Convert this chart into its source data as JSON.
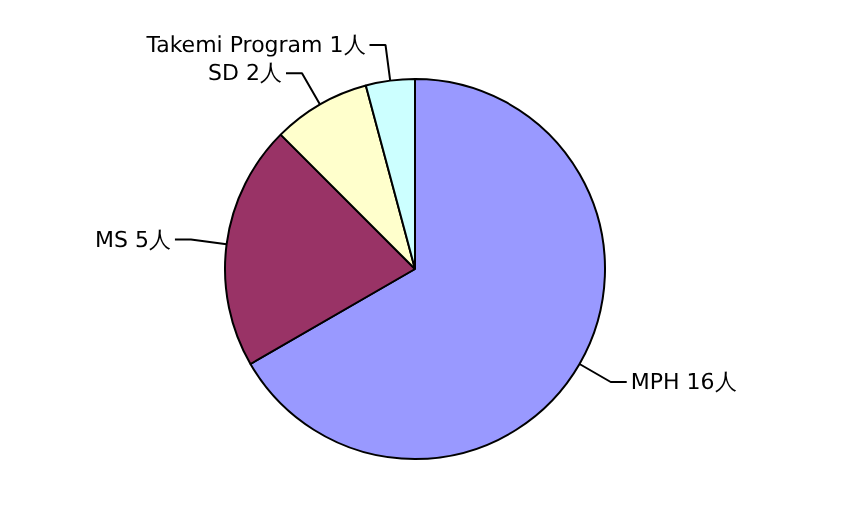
{
  "chart_data": {
    "type": "pie",
    "categories": [
      "MPH",
      "MS",
      "SD",
      "Takemi Program"
    ],
    "values": [
      16,
      5,
      2,
      1
    ],
    "value_labels": [
      "16人",
      "5人",
      "2人",
      "1人"
    ],
    "colors": [
      "#9999ff",
      "#993366",
      "#ffffcc",
      "#ccffff"
    ],
    "legend": false
  }
}
